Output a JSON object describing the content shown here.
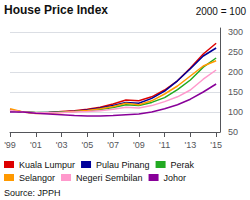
{
  "chart_data": {
    "type": "line",
    "title": "House Price Index",
    "subtitle": "2000 = 100",
    "annotations": [
      "Source: JPPH"
    ],
    "x": [
      1999,
      2000,
      2001,
      2002,
      2003,
      2004,
      2005,
      2006,
      2007,
      2008,
      2009,
      2010,
      2011,
      2012,
      2013,
      2014,
      2015
    ],
    "series": [
      {
        "name": "Kuala Lumpur",
        "color": "#dd0000",
        "values": [
          105,
          100,
          98,
          99,
          101,
          103,
          107,
          112,
          120,
          130,
          128,
          138,
          155,
          178,
          210,
          245,
          272
        ]
      },
      {
        "name": "Pulau Pinang",
        "color": "#000099",
        "values": [
          104,
          100,
          98,
          99,
          100,
          102,
          105,
          110,
          116,
          124,
          122,
          134,
          152,
          178,
          208,
          240,
          260
        ]
      },
      {
        "name": "Perak",
        "color": "#22aa22",
        "values": [
          103,
          100,
          99,
          99,
          100,
          101,
          103,
          106,
          111,
          118,
          116,
          124,
          136,
          156,
          180,
          212,
          235
        ]
      },
      {
        "name": "Selangor",
        "color": "#ff9900",
        "values": [
          108,
          100,
          96,
          97,
          99,
          101,
          104,
          108,
          114,
          122,
          118,
          128,
          145,
          165,
          190,
          215,
          228
        ]
      },
      {
        "name": "Negeri Sembilan",
        "color": "#ff99cc",
        "values": [
          104,
          100,
          98,
          98,
          99,
          100,
          101,
          103,
          107,
          112,
          110,
          116,
          126,
          138,
          155,
          182,
          205
        ]
      },
      {
        "name": "Johor",
        "color": "#880099",
        "values": [
          100,
          100,
          97,
          95,
          93,
          91,
          90,
          90,
          91,
          93,
          95,
          100,
          108,
          118,
          132,
          150,
          170
        ]
      }
    ],
    "xlim": [
      1999,
      2015.3
    ],
    "xticks": [
      {
        "value": 1999,
        "label": "'99"
      },
      {
        "value": 2001,
        "label": "'01"
      },
      {
        "value": 2003,
        "label": "'03"
      },
      {
        "value": 2005,
        "label": "'05"
      },
      {
        "value": 2007,
        "label": "'07"
      },
      {
        "value": 2009,
        "label": "'09"
      },
      {
        "value": 2011,
        "label": "'11"
      },
      {
        "value": 2013,
        "label": "'13"
      },
      {
        "value": 2015,
        "label": "'15"
      }
    ],
    "ylim": [
      50,
      310
    ],
    "yticks": [
      50,
      100,
      150,
      200,
      250,
      300
    ],
    "grid": true,
    "legend": "bottom"
  }
}
